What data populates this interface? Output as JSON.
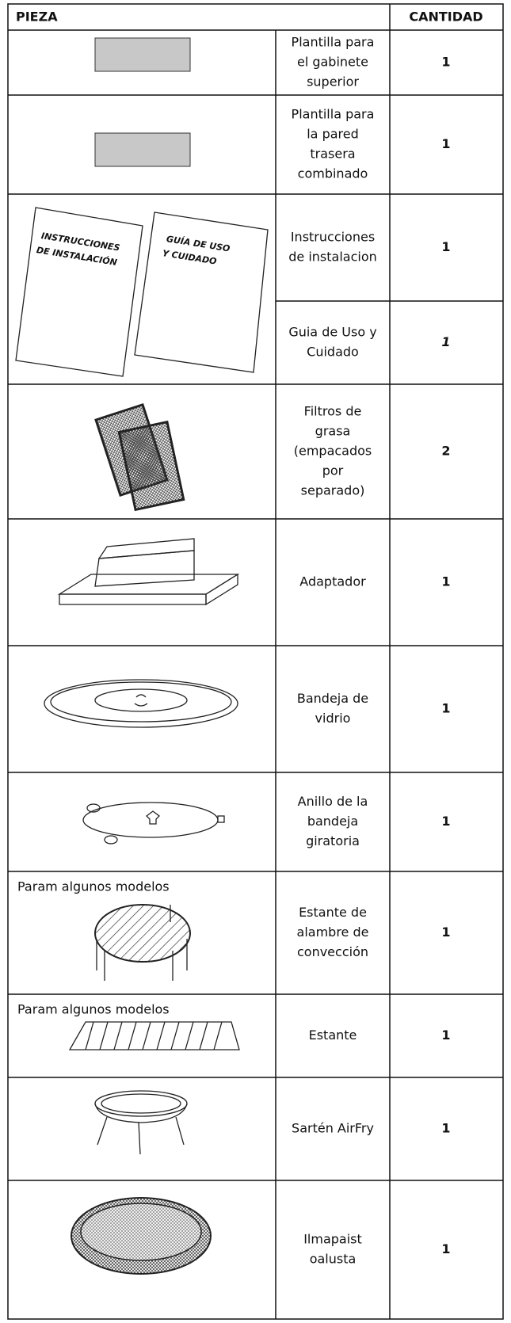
{
  "header": {
    "pieza": "PIEZA",
    "cantidad": "CANTIDAD"
  },
  "illustration_texts": {
    "installation_manual": [
      "INSTRUCCIONES",
      "DE INSTALACIÓN"
    ],
    "care_guide": [
      "GUÍA DE USO",
      "Y CUIDADO"
    ]
  },
  "rows": [
    {
      "description": [
        "Plantilla para",
        "el gabinete",
        "superior"
      ],
      "quantity": 1
    },
    {
      "description": [
        "Plantilla para",
        "la  pared",
        "trasera",
        "combinado"
      ],
      "quantity": 1
    },
    {
      "description": [
        "Instrucciones",
        "de instalacion"
      ],
      "quantity": 1
    },
    {
      "description": [
        "Guia de Uso y",
        "Cuidado"
      ],
      "quantity": 1
    },
    {
      "description": [
        "Filtros de",
        "grasa",
        "(empacados",
        "por",
        "separado)"
      ],
      "quantity": 2
    },
    {
      "description": [
        "Adaptador"
      ],
      "quantity": 1
    },
    {
      "description": [
        "Bandeja de",
        "vidrio"
      ],
      "quantity": 1
    },
    {
      "description": [
        "Anillo de la",
        "bandeja",
        "giratoria"
      ],
      "quantity": 1
    },
    {
      "description": [
        "Estante de",
        "alambre de",
        "convección"
      ],
      "quantity": 1,
      "note": "Param algunos modelos"
    },
    {
      "description": [
        "Estante"
      ],
      "quantity": 1,
      "note": "Param algunos modelos"
    },
    {
      "description": [
        "Sartén AirFry"
      ],
      "quantity": 1
    },
    {
      "description": [
        "Ilmapaist",
        "oalusta"
      ],
      "quantity": 1
    }
  ]
}
